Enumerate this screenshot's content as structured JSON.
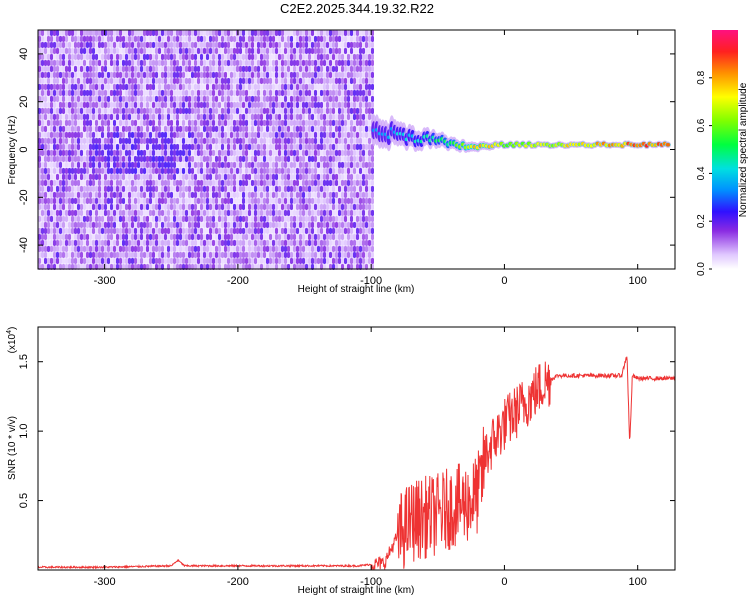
{
  "title": "C2E2.2025.344.19.32.R22",
  "colors": {
    "spectrum_low": "#e8d8ff",
    "spectrum_mid": "#6a1ff0",
    "snr_line": "#ee3333",
    "axis": "#000000"
  },
  "chart_data": [
    {
      "type": "heatmap",
      "name": "spectrogram",
      "title": "C2E2.2025.344.19.32.R22",
      "xlabel": "Height of straight line (km)",
      "ylabel": "Frequency (Hz)",
      "xlim": [
        -350,
        128
      ],
      "ylim": [
        -50,
        50
      ],
      "x_ticks": [
        -300,
        -200,
        -100,
        0,
        100
      ],
      "x_tick_labels": [
        "-300",
        "-200",
        "-100",
        "0",
        "100"
      ],
      "y_ticks": [
        -40,
        -20,
        0,
        20,
        40
      ],
      "y_tick_labels": [
        "-40",
        "-20",
        "0",
        "20",
        "40"
      ],
      "noise_region_end": -100,
      "signal_track": [
        {
          "x": -98,
          "freq": 8,
          "spread": 10,
          "amp": 0.35
        },
        {
          "x": -80,
          "freq": 6,
          "spread": 8,
          "amp": 0.4
        },
        {
          "x": -60,
          "freq": 5,
          "spread": 6,
          "amp": 0.45
        },
        {
          "x": -40,
          "freq": 2,
          "spread": 4,
          "amp": 0.55
        },
        {
          "x": -20,
          "freq": 1,
          "spread": 3,
          "amp": 0.85
        },
        {
          "x": 0,
          "freq": 2,
          "spread": 2,
          "amp": 0.65
        },
        {
          "x": 30,
          "freq": 2,
          "spread": 2,
          "amp": 0.7
        },
        {
          "x": 70,
          "freq": 2,
          "spread": 2,
          "amp": 0.8
        },
        {
          "x": 100,
          "freq": 2,
          "spread": 2,
          "amp": 0.9
        },
        {
          "x": 125,
          "freq": 2,
          "spread": 2,
          "amp": 0.85
        }
      ],
      "colorbar": {
        "label": "Normalized spectral amplitude",
        "range": [
          0,
          1
        ],
        "ticks": [
          0.0,
          0.2,
          0.4,
          0.6,
          0.8
        ],
        "tick_labels": [
          "0.0",
          "0.2",
          "0.4",
          "0.6",
          "0.8"
        ]
      }
    },
    {
      "type": "line",
      "name": "snr",
      "xlabel": "Height of straight line (km)",
      "ylabel": "SNR (10 * v/v)",
      "y_multiplier_base": "(x10",
      "y_multiplier_exp": "4",
      "y_multiplier_close": ")",
      "xlim": [
        -350,
        128
      ],
      "ylim": [
        0.0,
        1.75
      ],
      "x_ticks": [
        -300,
        -200,
        -100,
        0,
        100
      ],
      "x_tick_labels": [
        "-300",
        "-200",
        "-100",
        "0",
        "100"
      ],
      "y_ticks": [
        0.5,
        1.0,
        1.5
      ],
      "y_tick_labels": [
        "0.5",
        "1.0",
        "1.5"
      ],
      "series": [
        {
          "name": "SNR",
          "x": [
            -350,
            -300,
            -250,
            -245,
            -240,
            -200,
            -150,
            -110,
            -100,
            -90,
            -80,
            -70,
            -60,
            -50,
            -40,
            -30,
            -25,
            -20,
            -17,
            -15,
            -10,
            0,
            10,
            20,
            30,
            40,
            50,
            60,
            70,
            80,
            88,
            92,
            94,
            96,
            100,
            110,
            120,
            128
          ],
          "y": [
            0.02,
            0.02,
            0.03,
            0.07,
            0.03,
            0.03,
            0.03,
            0.03,
            0.04,
            0.05,
            0.25,
            0.35,
            0.38,
            0.4,
            0.45,
            0.48,
            0.5,
            0.55,
            0.65,
            0.8,
            0.9,
            1.05,
            1.15,
            1.25,
            1.35,
            1.4,
            1.4,
            1.4,
            1.4,
            1.4,
            1.4,
            1.55,
            0.9,
            1.4,
            1.38,
            1.38,
            1.38,
            1.38
          ]
        }
      ]
    }
  ]
}
